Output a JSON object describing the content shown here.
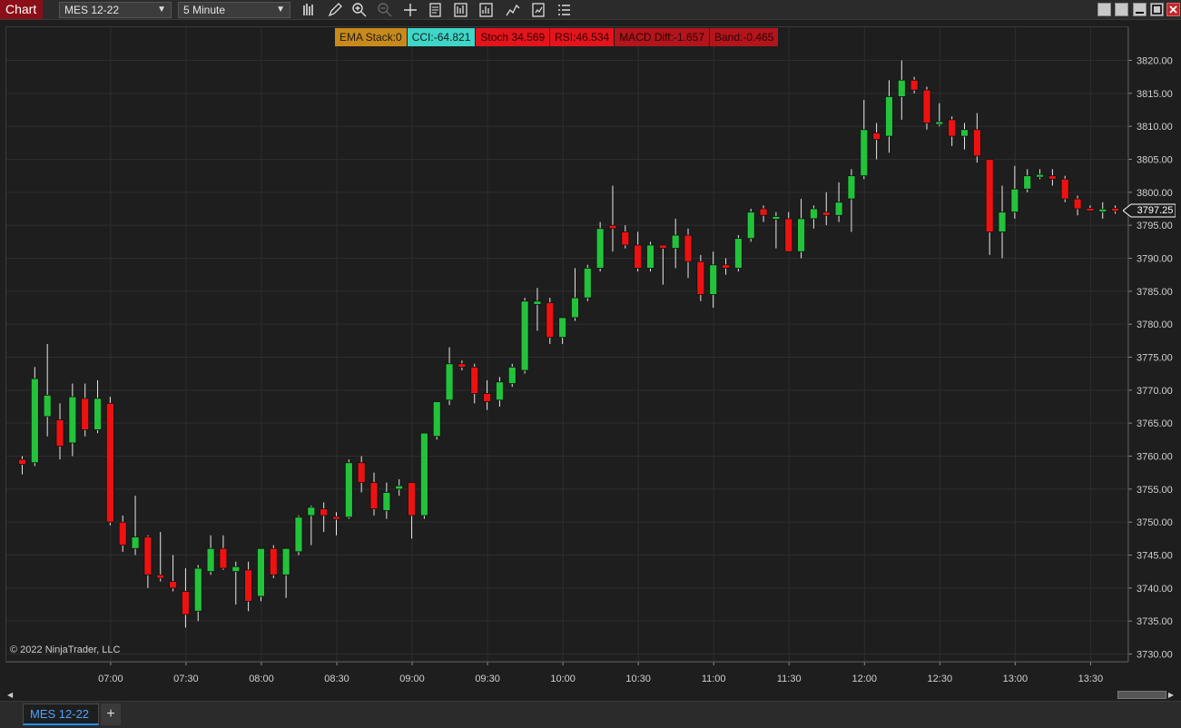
{
  "app": {
    "title": "Chart"
  },
  "toolbar": {
    "instrument": "MES 12-22",
    "interval": "5 Minute",
    "tools": [
      "bar-style-icon",
      "pencil-icon",
      "zoom-in-icon",
      "zoom-out-icon",
      "crosshair-icon",
      "data-box-icon",
      "indicators-icon",
      "strategies-icon",
      "drawing-tools-icon",
      "properties-icon",
      "list-icon"
    ]
  },
  "indicators": {
    "ema": "EMA Stack:0",
    "cci": "CCI:-64.821",
    "stoch": "Stoch 34.569",
    "rsi": "RSI:46.534",
    "macd": "MACD Diff:-1.657",
    "band": "Band:-0.465"
  },
  "colors": {
    "up": "#22c33a",
    "down": "#ee1111",
    "grid": "#2e2e2e",
    "text": "#d0d0d0"
  },
  "price_marker": "3797.25",
  "copyright": "© 2022 NinjaTrader, LLC",
  "tabs": [
    {
      "label": "MES 12-22"
    }
  ],
  "tab_add": "+",
  "chart_data": {
    "type": "candlestick",
    "y_ticks": [
      "3730.00",
      "3735.00",
      "3740.00",
      "3745.00",
      "3750.00",
      "3755.00",
      "3760.00",
      "3765.00",
      "3770.00",
      "3775.00",
      "3780.00",
      "3785.00",
      "3790.00",
      "3795.00",
      "3800.00",
      "3805.00",
      "3810.00",
      "3815.00",
      "3820.00"
    ],
    "x_ticks": [
      "07:00",
      "07:30",
      "08:00",
      "08:30",
      "09:00",
      "09:30",
      "10:00",
      "10:30",
      "11:00",
      "11:30",
      "12:00",
      "12:30",
      "13:00",
      "13:30"
    ],
    "ylim": [
      3728.5,
      3822.5
    ],
    "first_bar_time": "06:25",
    "bar_minutes": 5,
    "ohlc": [
      [
        3759.5,
        3760.0,
        3757.25,
        3758.75
      ],
      [
        3759.0,
        3773.5,
        3758.5,
        3771.75
      ],
      [
        3766.0,
        3777.0,
        3763.0,
        3769.25
      ],
      [
        3765.5,
        3768.0,
        3759.5,
        3761.5
      ],
      [
        3762.0,
        3771.0,
        3760.0,
        3769.0
      ],
      [
        3768.75,
        3771.0,
        3763.0,
        3764.0
      ],
      [
        3764.0,
        3771.5,
        3763.5,
        3768.75
      ],
      [
        3768.0,
        3769.0,
        3749.5,
        3750.0
      ],
      [
        3750.0,
        3751.0,
        3745.5,
        3746.5
      ],
      [
        3746.0,
        3754.0,
        3745.0,
        3747.75
      ],
      [
        3747.75,
        3748.0,
        3740.0,
        3742.0
      ],
      [
        3742.0,
        3748.5,
        3741.0,
        3741.5
      ],
      [
        3741.0,
        3745.0,
        3739.5,
        3740.0
      ],
      [
        3739.5,
        3743.0,
        3734.0,
        3736.0
      ],
      [
        3736.5,
        3743.5,
        3735.0,
        3743.0
      ],
      [
        3742.5,
        3748.0,
        3742.0,
        3746.0
      ],
      [
        3746.0,
        3748.0,
        3742.75,
        3743.0
      ],
      [
        3742.5,
        3744.0,
        3737.5,
        3743.25
      ],
      [
        3742.75,
        3744.0,
        3736.5,
        3738.0
      ],
      [
        3738.75,
        3746.0,
        3738.0,
        3746.0
      ],
      [
        3746.0,
        3746.5,
        3741.5,
        3742.0
      ],
      [
        3742.0,
        3746.0,
        3738.5,
        3746.0
      ],
      [
        3745.5,
        3751.0,
        3745.0,
        3750.75
      ],
      [
        3751.0,
        3752.5,
        3746.5,
        3752.25
      ],
      [
        3752.0,
        3753.0,
        3748.5,
        3751.0
      ],
      [
        3750.75,
        3751.5,
        3748.0,
        3750.5
      ],
      [
        3750.75,
        3759.5,
        3750.5,
        3759.0
      ],
      [
        3759.0,
        3760.0,
        3754.5,
        3756.0
      ],
      [
        3756.0,
        3757.5,
        3751.0,
        3752.0
      ],
      [
        3751.75,
        3756.0,
        3750.5,
        3754.5
      ],
      [
        3755.0,
        3756.5,
        3754.0,
        3755.5
      ],
      [
        3756.0,
        3756.0,
        3747.5,
        3751.0
      ],
      [
        3751.0,
        3763.5,
        3750.5,
        3763.5
      ],
      [
        3763.0,
        3768.0,
        3762.5,
        3768.25
      ],
      [
        3768.5,
        3776.5,
        3767.75,
        3774.0
      ],
      [
        3774.0,
        3774.5,
        3773.0,
        3773.5
      ],
      [
        3773.5,
        3774.0,
        3768.0,
        3769.5
      ],
      [
        3769.5,
        3771.5,
        3767.0,
        3768.25
      ],
      [
        3768.5,
        3772.0,
        3767.5,
        3771.25
      ],
      [
        3771.0,
        3774.0,
        3770.5,
        3773.5
      ],
      [
        3773.0,
        3784.0,
        3772.5,
        3783.5
      ],
      [
        3783.0,
        3785.5,
        3779.0,
        3783.5
      ],
      [
        3783.25,
        3784.0,
        3777.0,
        3778.0
      ],
      [
        3778.0,
        3781.0,
        3777.0,
        3781.0
      ],
      [
        3781.0,
        3788.5,
        3780.5,
        3784.0
      ],
      [
        3784.0,
        3789.0,
        3783.5,
        3788.5
      ],
      [
        3788.5,
        3795.5,
        3788.0,
        3794.5
      ],
      [
        3795.0,
        3801.0,
        3791.0,
        3794.5
      ],
      [
        3794.0,
        3795.0,
        3791.5,
        3792.0
      ],
      [
        3792.0,
        3794.0,
        3788.0,
        3788.5
      ],
      [
        3788.5,
        3792.5,
        3788.0,
        3792.0
      ],
      [
        3792.0,
        3792.0,
        3786.0,
        3791.5
      ],
      [
        3791.5,
        3796.0,
        3788.5,
        3793.5
      ],
      [
        3793.5,
        3794.5,
        3787.0,
        3789.5
      ],
      [
        3789.5,
        3790.5,
        3783.5,
        3784.5
      ],
      [
        3784.5,
        3791.0,
        3782.5,
        3789.0
      ],
      [
        3789.0,
        3790.0,
        3787.5,
        3788.5
      ],
      [
        3788.5,
        3793.5,
        3788.0,
        3793.0
      ],
      [
        3793.0,
        3797.5,
        3792.5,
        3797.0
      ],
      [
        3797.5,
        3798.0,
        3795.5,
        3796.5
      ],
      [
        3796.0,
        3797.0,
        3791.5,
        3796.25
      ],
      [
        3796.0,
        3797.0,
        3791.5,
        3791.0
      ],
      [
        3791.0,
        3799.0,
        3790.0,
        3796.0
      ],
      [
        3796.0,
        3798.0,
        3794.5,
        3797.5
      ],
      [
        3797.0,
        3800.0,
        3795.0,
        3796.5
      ],
      [
        3796.5,
        3801.5,
        3795.5,
        3798.5
      ],
      [
        3799.0,
        3803.5,
        3794.0,
        3802.5
      ],
      [
        3802.5,
        3814.0,
        3802.0,
        3809.5
      ],
      [
        3809.0,
        3810.5,
        3805.0,
        3808.0
      ],
      [
        3808.5,
        3817.0,
        3806.0,
        3814.5
      ],
      [
        3814.5,
        3820.0,
        3811.0,
        3817.0
      ],
      [
        3817.0,
        3817.5,
        3815.0,
        3815.5
      ],
      [
        3815.5,
        3816.0,
        3809.5,
        3810.5
      ],
      [
        3810.5,
        3813.5,
        3810.0,
        3810.5
      ],
      [
        3811.0,
        3811.5,
        3807.0,
        3808.5
      ],
      [
        3808.5,
        3810.5,
        3806.5,
        3809.5
      ],
      [
        3809.5,
        3812.0,
        3804.5,
        3805.5
      ],
      [
        3805.0,
        3805.0,
        3790.5,
        3794.0
      ],
      [
        3794.0,
        3801.0,
        3790.0,
        3797.0
      ],
      [
        3797.0,
        3804.0,
        3796.0,
        3800.5
      ],
      [
        3800.5,
        3803.5,
        3800.0,
        3802.5
      ],
      [
        3802.5,
        3803.5,
        3802.0,
        3802.5
      ],
      [
        3802.5,
        3803.5,
        3801.0,
        3802.0
      ],
      [
        3802.0,
        3802.5,
        3798.5,
        3799.0
      ],
      [
        3799.0,
        3799.5,
        3796.5,
        3797.5
      ],
      [
        3797.5,
        3798.0,
        3797.25,
        3797.25
      ],
      [
        3797.25,
        3798.5,
        3796.0,
        3797.25
      ],
      [
        3797.5,
        3798.0,
        3796.75,
        3797.25
      ]
    ]
  }
}
